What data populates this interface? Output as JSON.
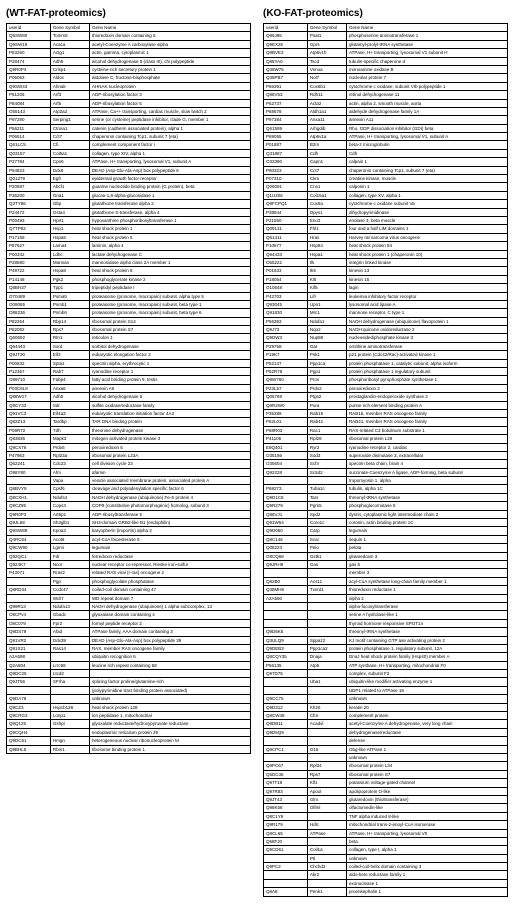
{
  "left": {
    "title": "(WT-FAT-proteomics)",
    "headers": [
      "userid",
      "Gene Symbol",
      "Gene Name"
    ],
    "rows": [
      [
        "Q5SW80",
        "Tomm5",
        "thioredoxin domain containing 5"
      ],
      [
        "Q9SW19",
        "Acaca",
        "acetyl-Coenzyme A carboxylase alpha"
      ],
      [
        "P63260",
        "Actg1",
        "actin, gamma, cytoplasmic 1"
      ],
      [
        "P28474",
        "Adh5",
        "alcohol dehydrogenase 5 (class III), chi polypeptide"
      ],
      [
        "Q9R0P4",
        "Crisp1",
        "cysteine-rich secretory protein 1"
      ],
      [
        "P05063",
        "Aldoc",
        "aldolase C, fructose-bisphosphate"
      ],
      [
        "Q9SW43",
        "Ahnak",
        "AHNAK nucleoprotein"
      ],
      [
        "P61205",
        "Arf3",
        "ADP-ribosylation factor 3"
      ],
      [
        "P84084",
        "Arf5",
        "ADP-ribosylation factor 5"
      ],
      [
        "O55143",
        "Atp2a2",
        "ATPase, Ca++ transporting, cardiac muscle, slow twitch 2"
      ],
      [
        "P97290",
        "Serping1",
        "serine (or cysteine) peptidase inhibitor, clade G, member 1"
      ],
      [
        "P56211",
        "Ctnna1",
        "catenin (cadherin associated protein), alpha 1"
      ],
      [
        "P06514",
        "Cct7",
        "chaperonin containing Tcp1, subunit 7 (eta)"
      ],
      [
        "Q61LC5",
        "Cfi",
        "complement component factor i"
      ],
      [
        "Q03157",
        "Col5a1",
        "collagen, type XIV, alpha 1"
      ],
      [
        "P27784",
        "Cpn6",
        "ATPase, H+ transporting, lysosomal V1, subunit A"
      ],
      [
        "P54823",
        "Ddx6",
        "DEAD (Asp-Glu-Ala-Asp) box polypeptide 6"
      ],
      [
        "Q01279",
        "Egfr",
        "epidermal growth factor receptor"
      ],
      [
        "P20897",
        "Abcf1",
        "guanine nucleotide binding protein (G protein), beta"
      ],
      [
        "P36200",
        "Gna1",
        "glucan-1,6-alpha-glucosidase 1"
      ],
      [
        "Q3TY86",
        "Gltp",
        "glutathione transferase alpha 2"
      ],
      [
        "P24472",
        "Gsta4",
        "glutathione S-transferase, alpha 4"
      ],
      [
        "P00493",
        "Hprt1",
        "hypoxanthine phosphoribosyltransferase 1"
      ],
      [
        "Q7TP82",
        "Hsp1",
        "heat shock protein 1"
      ],
      [
        "P17159",
        "Hspa5",
        "heat shock protein 5"
      ],
      [
        "P87627",
        "Lama4",
        "laminin, alpha 4"
      ],
      [
        "P00342",
        "Ldhc",
        "lactate dehydrogenase C"
      ],
      [
        "P28680",
        "Mannan",
        "mannosidase alpha class 2A member 1"
      ],
      [
        "P49722",
        "Hspa8",
        "heat shock protein 8"
      ],
      [
        "P14148",
        "Pgk2",
        "phosphoglycerate kinase 2"
      ],
      [
        "Q8BH37",
        "Tpp1",
        "tripeptidyl peptidase I"
      ],
      [
        "O70489",
        "Psma5",
        "proteasome (prosome, macropain) subunit, alpha type 5"
      ],
      [
        "O09065",
        "Psmb1",
        "proteasome (prosome, macropain) subunit, beta type 1"
      ],
      [
        "O88236",
        "Psmb6",
        "proteasome (prosome, macropain) subunit, beta type 6"
      ],
      [
        "P82264",
        "Rbp14",
        "ribosomal protein S14"
      ],
      [
        "P62082",
        "Rps7",
        "ribosomal protein S7"
      ],
      [
        "Q60692",
        "Rtn1",
        "reticulon 1"
      ],
      [
        "Q64443",
        "Sord",
        "sorbitol dehydrogenase"
      ],
      [
        "Q9JT30",
        "Eif2",
        "eukaryotic elongation factor 2"
      ],
      [
        "P00832",
        "Spta1",
        "spectrin alpha, erythrocytic 1"
      ],
      [
        "P12367",
        "Rab7",
        "ryanodine receptor 1"
      ],
      [
        "O89710",
        "Fabp4",
        "fatty acid binding protein 9, testis"
      ],
      [
        "P03C6L9",
        "Anxa6",
        "annexin A6"
      ],
      [
        "Q88W17",
        "Adh5",
        "alcohol dehydrogenase 5"
      ],
      [
        "Q9CY33",
        "Sdr",
        "sulfite oxidase/reductase family"
      ],
      [
        "Q91VC3",
        "Eif4a3",
        "eukaryotic translation initiation factor 4A3"
      ],
      [
        "Q82Z13",
        "Tardbp",
        "TAR DNA binding protein"
      ],
      [
        "P09R72",
        "Tdh",
        "threonine dehydrogenase"
      ],
      [
        "Q83836",
        "Mapk3",
        "mitogen activated protein kinase 3"
      ],
      [
        "Q9CX76",
        "Prdx5",
        "peroxiredoxin 5"
      ],
      [
        "P47963",
        "Rpl23a",
        "ribosomal protein L23A"
      ],
      [
        "Q62241",
        "Cdc23",
        "cell division cycle 23"
      ],
      [
        "O98Y80",
        "Afm",
        "afamin"
      ],
      [
        "",
        "Vapa",
        "vesicle associated membrane protein, associated protein A"
      ],
      [
        "Q8BVY9",
        "Cpsf6",
        "cleavage and polyadenylation specific factor 6"
      ],
      [
        "Q9CXH1",
        "Ndufs4",
        "NADH dehydrogenase (ubiquinone) Fe-S protein 4"
      ],
      [
        "Q9CZ85",
        "Cops3",
        "COP9 (constitutive photomorphogenic) homolog, subunit 3"
      ],
      [
        "Q9R0P3",
        "Art5p1",
        "ADP-ribosyltransferase 5"
      ],
      [
        "Q9JL68",
        "Sh3glb1",
        "SH3-domain GRB2-like B1 (endophilin)"
      ],
      [
        "Q9SW89",
        "Kpna3",
        "karyopherin (importin) alpha 3"
      ],
      [
        "Q4RC64",
        "Acot9",
        "acyl-CoA thioesterase 9"
      ],
      [
        "Q9CW90",
        "Lgmn",
        "legumain"
      ],
      [
        "Q92QC1",
        "Fdr",
        "ferredoxin reductase"
      ],
      [
        "Q924K7",
        "Ncor",
        "nuclear receptor co-repressor, Rieske iron-sulfur"
      ],
      [
        "P43071",
        "Rras2",
        "related RAS viral (r-ras) oncogene 2"
      ],
      [
        "",
        "Pgp",
        "phosphoglycolate phosphatase"
      ],
      [
        "Q8RD34",
        "Ccdc47",
        "coiled-coil domain containing 47"
      ],
      [
        "",
        "Wdr7",
        "WD repeat domain 7"
      ],
      [
        "Q99R13",
        "Ndufa13",
        "NADH dehydrogenase (ubiquinone) 1 alpha subcomplex, 13"
      ],
      [
        "O8CPv4",
        "Gbadc",
        "glyoxalase domain containing 4"
      ],
      [
        "O8C079",
        "Fpr2",
        "formyl peptide receptor 2"
      ],
      [
        "Q9DS78",
        "Afad",
        "ATPase family, AAA domain containing 3"
      ],
      [
        "Q91VR2",
        "Ddx39",
        "DEAD (Asp-Glu-Ala-Asp) box polypeptide 39"
      ],
      [
        "Q91X21",
        "Ras14",
        "RAS, member RAS oncogene family"
      ],
      [
        "A2A698",
        "",
        "ubiquitin recognition 6"
      ],
      [
        "Q2A804",
        "Lrrc58",
        "leucine rich repeat containing 58"
      ],
      [
        "Q9DC25",
        "Ltcd2",
        ""
      ],
      [
        "Q9JT56",
        "SFrha",
        "splicing factor proline/glutamine-rich"
      ],
      [
        "",
        "",
        "(polypyrimidine tract binding protein associated)"
      ],
      [
        "Q9DA79",
        "",
        "unknown"
      ],
      [
        "Q9CZ3",
        "Hspcb128",
        "heat shock protein 128"
      ],
      [
        "Q9CRG3",
        "Lonp1",
        "lon peptidase 1, mitochondrial"
      ],
      [
        "Q9Q125",
        "Gshpr",
        "glyoxalate reductase/hydroxypyruvate reductase"
      ],
      [
        "Q9CQH4",
        "",
        "endoplasmic reticulum protein 29"
      ],
      [
        "Q9DC61",
        "Hmgn",
        "heterogeneous nuclear ribonucleoprotein M"
      ],
      [
        "Q9BHL5",
        "Rbm1",
        "ribosome binding protein 1"
      ]
    ]
  },
  "right": {
    "title": "(KO-FAT-proteomics)",
    "headers": [
      "userid",
      "Gene Symbol",
      "Gene Name"
    ],
    "rows": [
      [
        "Q99J85",
        "Psat1",
        "phosphoserine aminotransferase 1"
      ],
      [
        "Q9EX36",
        "Gprs",
        "glutamyl-prolyl-tRNA synthetase"
      ],
      [
        "Q8BVE3",
        "Atp6v1h",
        "ATPase, H+ transporting, lysosomal V1 subunit H"
      ],
      [
        "Q88YA0",
        "Tscd",
        "tubulin-specific chaperone d"
      ],
      [
        "Q38W75",
        "Vsnoa",
        "monoamine oxidase B"
      ],
      [
        "Q38PB7",
        "Nol7",
        "nucleolar protein 7"
      ],
      [
        "P56391",
        "Cox6b1",
        "cytochrome c oxidase, subunit VIb polypeptide 1"
      ],
      [
        "Q88V53",
        "Rdh11",
        "retinol dehydrogenase 11"
      ],
      [
        "P62737",
        "Acta2",
        "actin, alpha 2, smooth muscle, aorta"
      ],
      [
        "P68678",
        "Aldh1a1",
        "aldehyde dehydrogenase family 1A"
      ],
      [
        "P97384",
        "Anxa11",
        "annexin A11"
      ],
      [
        "Q61599",
        "Arhgdib",
        "Rho, GDP dissociation inhibitor (GDI) beta"
      ],
      [
        "P69055",
        "Atp6v1a",
        "ATPase, H+ transporting, lysosomal V1, subunit A"
      ],
      [
        "P01887",
        "B2m",
        "beta-2 microglobulin"
      ],
      [
        "Q31887",
        "Cdh",
        "Cdh"
      ],
      [
        "O33390",
        "Capn1",
        "calpain 1"
      ],
      [
        "P80323",
        "Cct7",
        "chaperonin containing Tcp1, subunit 7 (eta)"
      ],
      [
        "P07310",
        "Ckm",
        "creatine kinase, muscle"
      ],
      [
        "Q06091",
        "Cns1",
        "calponin 1"
      ],
      [
        "Q1U206",
        "Col15a1",
        "collagen, type XV, alpha 1"
      ],
      [
        "Q9FCPQ1",
        "Cox5a",
        "cytochrome c oxidase subunit Va"
      ],
      [
        "P38844",
        "Dpys1",
        "dihydropyrimidinase"
      ],
      [
        "P21550",
        "Eno3",
        "enolase 3, beta muscle"
      ],
      [
        "Q09131",
        "Fhl1",
        "four and a half LIM domains 1"
      ],
      [
        "Q61411",
        "Hras",
        "Harvey rat sarcoma virus oncogene"
      ],
      [
        "P10677",
        "Hsp84",
        "heat shock protein 84"
      ],
      [
        "Q64433",
        "Hspa1",
        "heat shock protein 1 (chaperonin 10)"
      ],
      [
        "O55222",
        "Ilk",
        "integrin linked kinase"
      ],
      [
        "P01633",
        "Ik5",
        "kinesin 13"
      ],
      [
        "P18054",
        "Kl5",
        "kinesin 15"
      ],
      [
        "O10548",
        "Kif5",
        "lagin"
      ],
      [
        "P42703",
        "Lifr",
        "leukemia inhibitory factor receptor"
      ],
      [
        "Q93045",
        "Upn1",
        "lysosomal acid lipase A"
      ],
      [
        "Q91830",
        "Mrc1",
        "mannose receptor, C type 1"
      ],
      [
        "P56393",
        "Ndufa1",
        "NADH dehydrogenase (ubiquinone) flavoprotein 1"
      ],
      [
        "Q9J73",
        "Nqo2",
        "NADH:quinone oxidoreductase 2"
      ],
      [
        "Q9DW3",
        "Nup88",
        "nucleosidediphosphate kinase 3"
      ],
      [
        "P29758",
        "Oat",
        "ornithine aminotransferase"
      ],
      [
        "P19K7",
        "Psk1",
        "p21 protein (Cdc42/Rac)-activated kinase 1"
      ],
      [
        "P52137",
        "Ppp1ca",
        "protein phosphatase 1, catalytic subunit, alpha isoform"
      ],
      [
        "P62R78",
        "Pgp1",
        "protein phosphatase 1 regulatory subunit"
      ],
      [
        "Q9W760",
        "Pros",
        "phosphoribosyl pyrophosphate synthetase 1"
      ],
      [
        "P23L57",
        "Prdx2",
        "peroxiredoxin 2"
      ],
      [
        "Q05769",
        "Ptgs2",
        "prostaglandin-endoperoxide synthase 2"
      ],
      [
        "Q9R2W0",
        "Pura",
        "purine rich element binding protein A"
      ],
      [
        "P35289",
        "Rab15",
        "RAB15, member RAS oncogene family"
      ],
      [
        "P62L01",
        "Rab41",
        "RAB41, member RAS oncogene family"
      ],
      [
        "P68R03",
        "Rac1",
        "RAS-related C3 botulinum substrate 1"
      ],
      [
        "P41105",
        "Rpl28",
        "ribosomal protein L28"
      ],
      [
        "E9Q401",
        "Ryr2",
        "ryanodine receptor 2, cardiac"
      ],
      [
        "O35186",
        "Sod3",
        "superoxide dismutase 3, extracellular"
      ],
      [
        "O35604",
        "Scf4",
        "spectrin beta chain, brain 4"
      ],
      [
        "Q92228",
        "Sc5d2",
        "succinate-Coenzyme A ligase, ADP-forming, beta subunit"
      ],
      [
        "",
        "",
        "tropomyosin 1, alpha"
      ],
      [
        "P68273",
        "Tuba1c",
        "tubulin, alpha 1C"
      ],
      [
        "Q9D1C8",
        "Tars",
        "threonyl-tRNA synthetase"
      ],
      [
        "Q9R279",
        "Pgm5",
        "phosphoglucomutase 5"
      ],
      [
        "Q88VJ1",
        "Spd2",
        "dysrin, cytoplasmic light intermediate chain 2"
      ],
      [
        "Q91W54",
        "Coro1c",
        "coronin, actin binding protein 1C"
      ],
      [
        "Q9D050",
        "Carp",
        "legumain"
      ],
      [
        "Q8C146",
        "Scai",
        "sequin 1"
      ],
      [
        "Q05223",
        "Pelo",
        "pelota"
      ],
      [
        "O8CQ68",
        "Gstk1",
        "glutaredoxin 3"
      ],
      [
        "Q9JRH9",
        "Gas",
        "gas 6"
      ],
      [
        "",
        "",
        "member 3"
      ],
      [
        "Q82B0",
        "Acs11",
        "acyl-CoA synthetase long-chain family member 1"
      ],
      [
        "Q38MH6",
        "Txnrd1",
        "thioredoxin reductase 1"
      ],
      [
        "A2A590",
        "",
        "alpha 2"
      ],
      [
        "",
        "",
        "alpha-fucosyltransferase"
      ],
      [
        "",
        "",
        "serine A hydrolase-like 1"
      ],
      [
        "",
        "",
        "thyroid hormone responsive SPOT14"
      ],
      [
        "Q9D6K5",
        "",
        "threonyl-tRNA synthetase"
      ],
      [
        "Q3ULQ9",
        "Sppaz2",
        "KJ motif containing GTP ase activating protein 2"
      ],
      [
        "Q9DEB3",
        "Ppp1ca2",
        "protein phosphatase 1, regulatory subunit, 12A"
      ],
      [
        "Q8CQY35",
        "Dnaja",
        "DnaJ heat shock protein family (Hsp40) member A"
      ],
      [
        "P56135",
        "Atp5",
        "ATP synthase, H+ transporting, mitochondrial F0"
      ],
      [
        "Q97D75",
        "",
        "complex, subunit F2"
      ],
      [
        "",
        "Uba1",
        "ubiquitin-like modifier activating enzyme 1"
      ],
      [
        "",
        "",
        "UDP1 related to ATPase 18"
      ],
      [
        "Q9CC75",
        "",
        "unknown"
      ],
      [
        "Q9D312",
        "Kh20",
        "keratin 20"
      ],
      [
        "Q8CW48",
        "Cfm",
        "complement protein"
      ],
      [
        "Q9DB11",
        "Acadvl",
        "acetyl-Coenzyme A dehydrogenase, very long chain"
      ],
      [
        "Q9D5Q9",
        "",
        "dehydrogenase/reductase"
      ],
      [
        "",
        "",
        "defense"
      ],
      [
        "Q9CPC1",
        "O15",
        "Obg-like ATPase 1"
      ],
      [
        "",
        "",
        "unknown"
      ],
      [
        "Q9PC67",
        "Rpl34",
        "ribosomal protein L34"
      ],
      [
        "Q5DC36",
        "Rps7",
        "ribosomal protein S7"
      ],
      [
        "Q97T19",
        "Klf1",
        "potassium voltage-gated channel"
      ],
      [
        "Q97R83",
        "Apool",
        "apolipoprotein O-like"
      ],
      [
        "Q9JT43",
        "Glrx",
        "glutaredoxin (thioltransferase)"
      ],
      [
        "Q98K58",
        "Olfml",
        "olfactomedin-like"
      ],
      [
        "Q8C1Y9",
        "",
        "TNF alpha induced 8-like"
      ],
      [
        "Q9R179",
        "Hdlc",
        "mitochondrial trans-2-enoyl-CoA isomerase"
      ],
      [
        "Q8CL65",
        "ATPase",
        "ATPase, H+ transporting, lysosomal V0"
      ],
      [
        "Q68FJ0",
        "",
        "beta"
      ],
      [
        "Q9CD61",
        "Coil1a",
        "collagen, type I, alpha 1"
      ],
      [
        "",
        "Ptl",
        "unknown"
      ],
      [
        "Q9PC2",
        "Chchd3",
        "coiled-coil-helix domain containing 3"
      ],
      [
        "",
        "Akr2",
        "aldo-keto reductase family 1"
      ],
      [
        "",
        "",
        "exonuclease 1"
      ],
      [
        "Q8A8",
        "Penk1",
        "proenkephalin 1"
      ]
    ]
  }
}
